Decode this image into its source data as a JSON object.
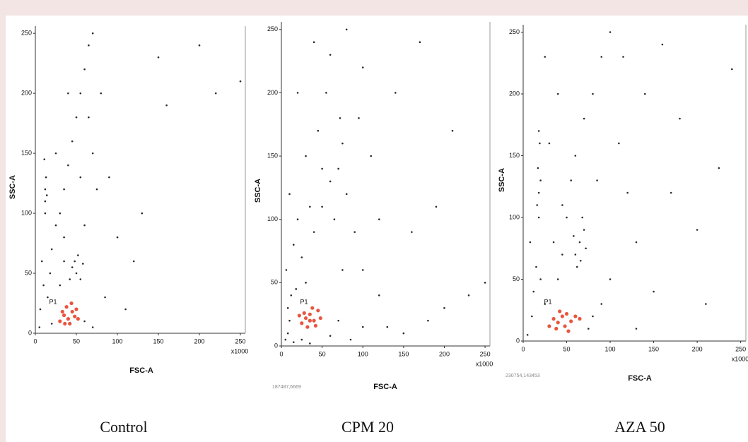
{
  "chart_data": [
    {
      "type": "scatter",
      "title": "Control",
      "xlabel": "FSC-A",
      "ylabel": "SSC-A",
      "x_multiplier": "x1000",
      "gate_label": "P1",
      "xlim": [
        0,
        256
      ],
      "ylim": [
        0,
        256
      ],
      "xticks": [
        0,
        50,
        100,
        150,
        200,
        250
      ],
      "yticks": [
        0,
        50,
        100,
        150,
        200,
        250
      ],
      "series": [
        {
          "color": "#2a2a2a",
          "x": [
            12,
            12,
            13,
            11,
            12,
            14,
            8,
            10,
            6,
            15,
            18,
            20,
            25,
            30,
            35,
            40,
            45,
            50,
            55,
            60,
            65,
            70,
            45,
            48,
            50,
            52,
            55,
            42,
            58,
            30,
            35,
            60,
            70,
            80,
            75,
            90,
            100,
            120,
            150,
            160,
            200,
            220,
            250,
            130,
            40,
            25,
            20,
            60,
            70,
            85,
            110,
            35,
            65,
            55,
            5
          ],
          "y": [
            110,
            120,
            130,
            145,
            100,
            115,
            60,
            40,
            20,
            30,
            50,
            70,
            90,
            100,
            120,
            140,
            160,
            180,
            200,
            220,
            240,
            250,
            55,
            60,
            50,
            65,
            45,
            45,
            58,
            40,
            60,
            90,
            150,
            200,
            120,
            130,
            80,
            60,
            230,
            190,
            240,
            200,
            210,
            100,
            200,
            150,
            8,
            10,
            5,
            30,
            20,
            80,
            180,
            130,
            5
          ]
        },
        {
          "color": "#e8553f",
          "x": [
            30,
            35,
            40,
            45,
            50,
            38,
            42,
            48,
            33,
            52,
            44,
            36
          ],
          "y": [
            10,
            15,
            12,
            18,
            20,
            22,
            8,
            14,
            18,
            12,
            25,
            8
          ]
        }
      ]
    },
    {
      "type": "scatter",
      "title": "CPM 20",
      "xlabel": "FSC-A",
      "ylabel": "SSC-A",
      "x_multiplier": "x1000",
      "gate_label": "P1",
      "annotation": "187487,6669",
      "xlim": [
        0,
        256
      ],
      "ylim": [
        0,
        256
      ],
      "xticks": [
        0,
        50,
        100,
        150,
        200,
        250
      ],
      "yticks": [
        0,
        50,
        100,
        150,
        200,
        250
      ],
      "series": [
        {
          "color": "#2a2a2a",
          "x": [
            5,
            8,
            10,
            12,
            6,
            15,
            20,
            10,
            25,
            30,
            40,
            50,
            60,
            70,
            75,
            72,
            80,
            65,
            90,
            100,
            55,
            60,
            45,
            30,
            20,
            40,
            80,
            100,
            110,
            120,
            150,
            180,
            200,
            230,
            250,
            130,
            100,
            70,
            60,
            15,
            25,
            35,
            85,
            160,
            190,
            210,
            140,
            95,
            50,
            35,
            170,
            8,
            18,
            120,
            75
          ],
          "y": [
            5,
            10,
            20,
            40,
            60,
            80,
            100,
            120,
            70,
            50,
            90,
            110,
            130,
            140,
            160,
            180,
            120,
            100,
            90,
            60,
            200,
            230,
            170,
            150,
            200,
            240,
            250,
            220,
            150,
            40,
            10,
            20,
            30,
            40,
            50,
            15,
            15,
            20,
            8,
            3,
            5,
            2,
            5,
            90,
            110,
            170,
            200,
            180,
            140,
            110,
            240,
            30,
            45,
            100,
            60
          ]
        },
        {
          "color": "#e8553f",
          "x": [
            25,
            30,
            35,
            40,
            45,
            32,
            38,
            28,
            42,
            48,
            35,
            22
          ],
          "y": [
            18,
            22,
            25,
            20,
            28,
            15,
            30,
            26,
            16,
            22,
            20,
            24
          ]
        }
      ]
    },
    {
      "type": "scatter",
      "title": "AZA 50",
      "xlabel": "FSC-A",
      "ylabel": "SSC-A",
      "x_multiplier": "x1000",
      "gate_label": "P1",
      "annotation": "230754,143453",
      "xlim": [
        0,
        256
      ],
      "ylim": [
        0,
        256
      ],
      "xticks": [
        0,
        50,
        100,
        150,
        200,
        250
      ],
      "yticks": [
        0,
        50,
        100,
        150,
        200,
        250
      ],
      "series": [
        {
          "color": "#2a2a2a",
          "x": [
            18,
            18,
            17,
            19,
            18,
            16,
            20,
            10,
            12,
            15,
            8,
            20,
            25,
            60,
            65,
            70,
            68,
            62,
            72,
            58,
            66,
            40,
            45,
            50,
            55,
            60,
            70,
            80,
            90,
            100,
            110,
            120,
            130,
            140,
            160,
            180,
            200,
            225,
            240,
            150,
            100,
            90,
            80,
            75,
            30,
            40,
            25,
            45,
            85,
            35,
            5,
            130,
            210,
            170,
            115
          ],
          "y": [
            100,
            120,
            140,
            160,
            170,
            110,
            130,
            20,
            40,
            60,
            80,
            50,
            30,
            70,
            80,
            90,
            100,
            60,
            75,
            85,
            65,
            50,
            70,
            100,
            130,
            150,
            180,
            200,
            230,
            250,
            160,
            120,
            80,
            200,
            240,
            180,
            90,
            140,
            220,
            40,
            50,
            30,
            20,
            10,
            160,
            200,
            230,
            110,
            130,
            80,
            5,
            10,
            30,
            120,
            230
          ]
        },
        {
          "color": "#e8553f",
          "x": [
            30,
            35,
            40,
            45,
            50,
            55,
            60,
            38,
            48,
            65,
            42,
            52
          ],
          "y": [
            12,
            18,
            15,
            20,
            22,
            16,
            20,
            10,
            12,
            18,
            24,
            8
          ]
        }
      ]
    }
  ]
}
